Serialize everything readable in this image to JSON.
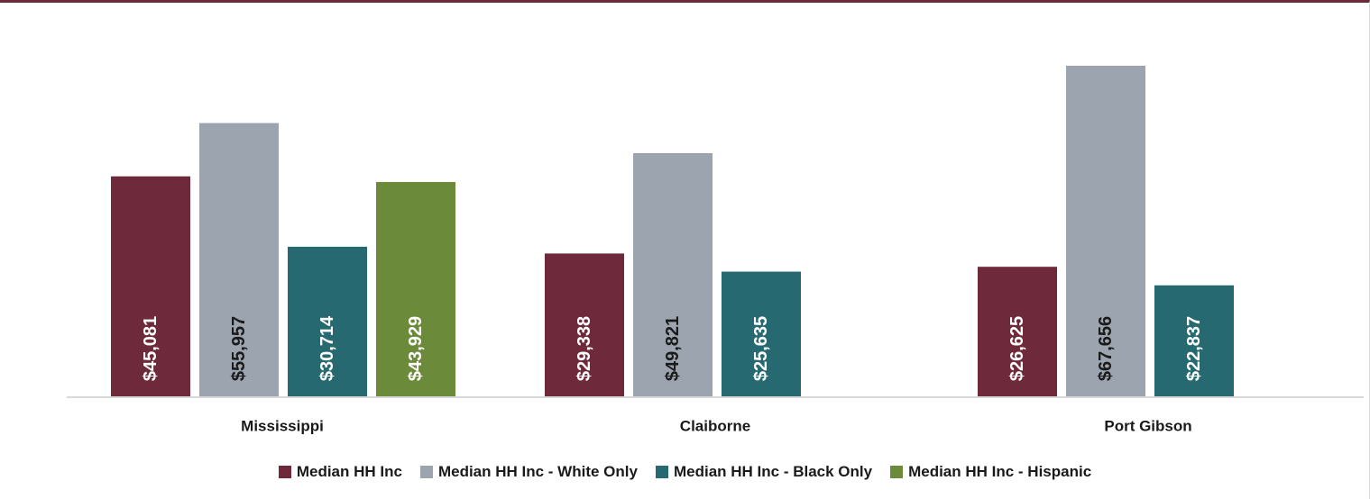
{
  "chart_data": {
    "type": "bar",
    "categories": [
      "Mississippi",
      "Claiborne",
      "Port Gibson"
    ],
    "series": [
      {
        "name": "Median HH Inc",
        "color": "#6e2a3a",
        "label_color": "#ffffff",
        "values": [
          45081,
          29338,
          26625
        ],
        "labels": [
          "$45,081",
          "$29,338",
          "$26,625"
        ]
      },
      {
        "name": "Median HH Inc - White Only",
        "color": "#9ca5af",
        "label_color": "#1a1a1a",
        "values": [
          55957,
          49821,
          67656
        ],
        "labels": [
          "$55,957",
          "$49,821",
          "$67,656"
        ]
      },
      {
        "name": "Median HH Inc - Black Only",
        "color": "#266970",
        "label_color": "#ffffff",
        "values": [
          30714,
          25635,
          22837
        ],
        "labels": [
          "$30,714",
          "$25,635",
          "$22,837"
        ]
      },
      {
        "name": "Median HH Inc - Hispanic",
        "color": "#6b8a3a",
        "label_color": "#ffffff",
        "values": [
          43929,
          null,
          null
        ],
        "labels": [
          "$43,929",
          null,
          null
        ]
      }
    ],
    "title": "",
    "xlabel": "",
    "ylabel": "",
    "ylim": [
      0,
      70000
    ],
    "grid": false,
    "legend": "bottom"
  }
}
